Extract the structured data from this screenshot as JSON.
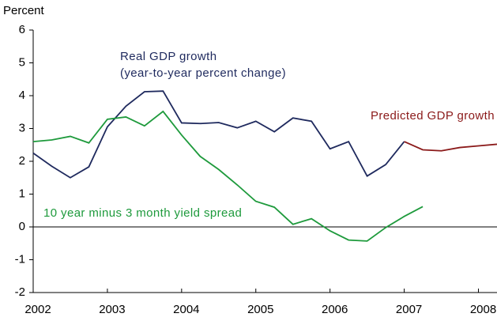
{
  "chart_data": {
    "type": "line",
    "y_axis_label": "Percent",
    "xlim": [
      2002,
      2008.25
    ],
    "xticks": [
      2002,
      2003,
      2004,
      2005,
      2006,
      2007,
      2008
    ],
    "ylim": [
      -2,
      6
    ],
    "yticks": [
      -2,
      -1,
      0,
      1,
      2,
      3,
      4,
      5,
      6
    ],
    "grid": false,
    "series": [
      {
        "name": "Real GDP growth",
        "color": "#1f2a5e",
        "x": [
          2002,
          2002.25,
          2002.5,
          2002.75,
          2003,
          2003.25,
          2003.5,
          2003.75,
          2004,
          2004.25,
          2004.5,
          2004.75,
          2005,
          2005.25,
          2005.5,
          2005.75,
          2006,
          2006.25,
          2006.5,
          2006.75,
          2007
        ],
        "values": [
          2.25,
          1.85,
          1.5,
          1.83,
          3.05,
          3.68,
          4.12,
          4.14,
          3.17,
          3.15,
          3.18,
          3.02,
          3.22,
          2.9,
          3.32,
          3.22,
          2.38,
          2.6,
          1.55,
          1.9,
          2.6
        ]
      },
      {
        "name": "Predicted GDP growth",
        "color": "#8b1a1a",
        "x": [
          2007,
          2007.25,
          2007.5,
          2007.75,
          2008,
          2008.25
        ],
        "values": [
          2.6,
          2.35,
          2.32,
          2.42,
          2.47,
          2.52
        ]
      },
      {
        "name": "10 year minus 3 month yield spread",
        "color": "#1e9a3c",
        "x": [
          2002,
          2002.25,
          2002.5,
          2002.75,
          2003,
          2003.25,
          2003.5,
          2003.75,
          2004,
          2004.25,
          2004.5,
          2004.75,
          2005,
          2005.25,
          2005.5,
          2005.75,
          2006,
          2006.25,
          2006.5,
          2006.75,
          2007,
          2007.25
        ],
        "values": [
          2.6,
          2.65,
          2.76,
          2.56,
          3.28,
          3.35,
          3.08,
          3.52,
          2.8,
          2.15,
          1.75,
          1.28,
          0.78,
          0.6,
          0.08,
          0.25,
          -0.12,
          -0.4,
          -0.43,
          -0.02,
          0.32,
          0.62
        ]
      }
    ],
    "annotations": [
      "(year-to-year percent change)"
    ]
  }
}
